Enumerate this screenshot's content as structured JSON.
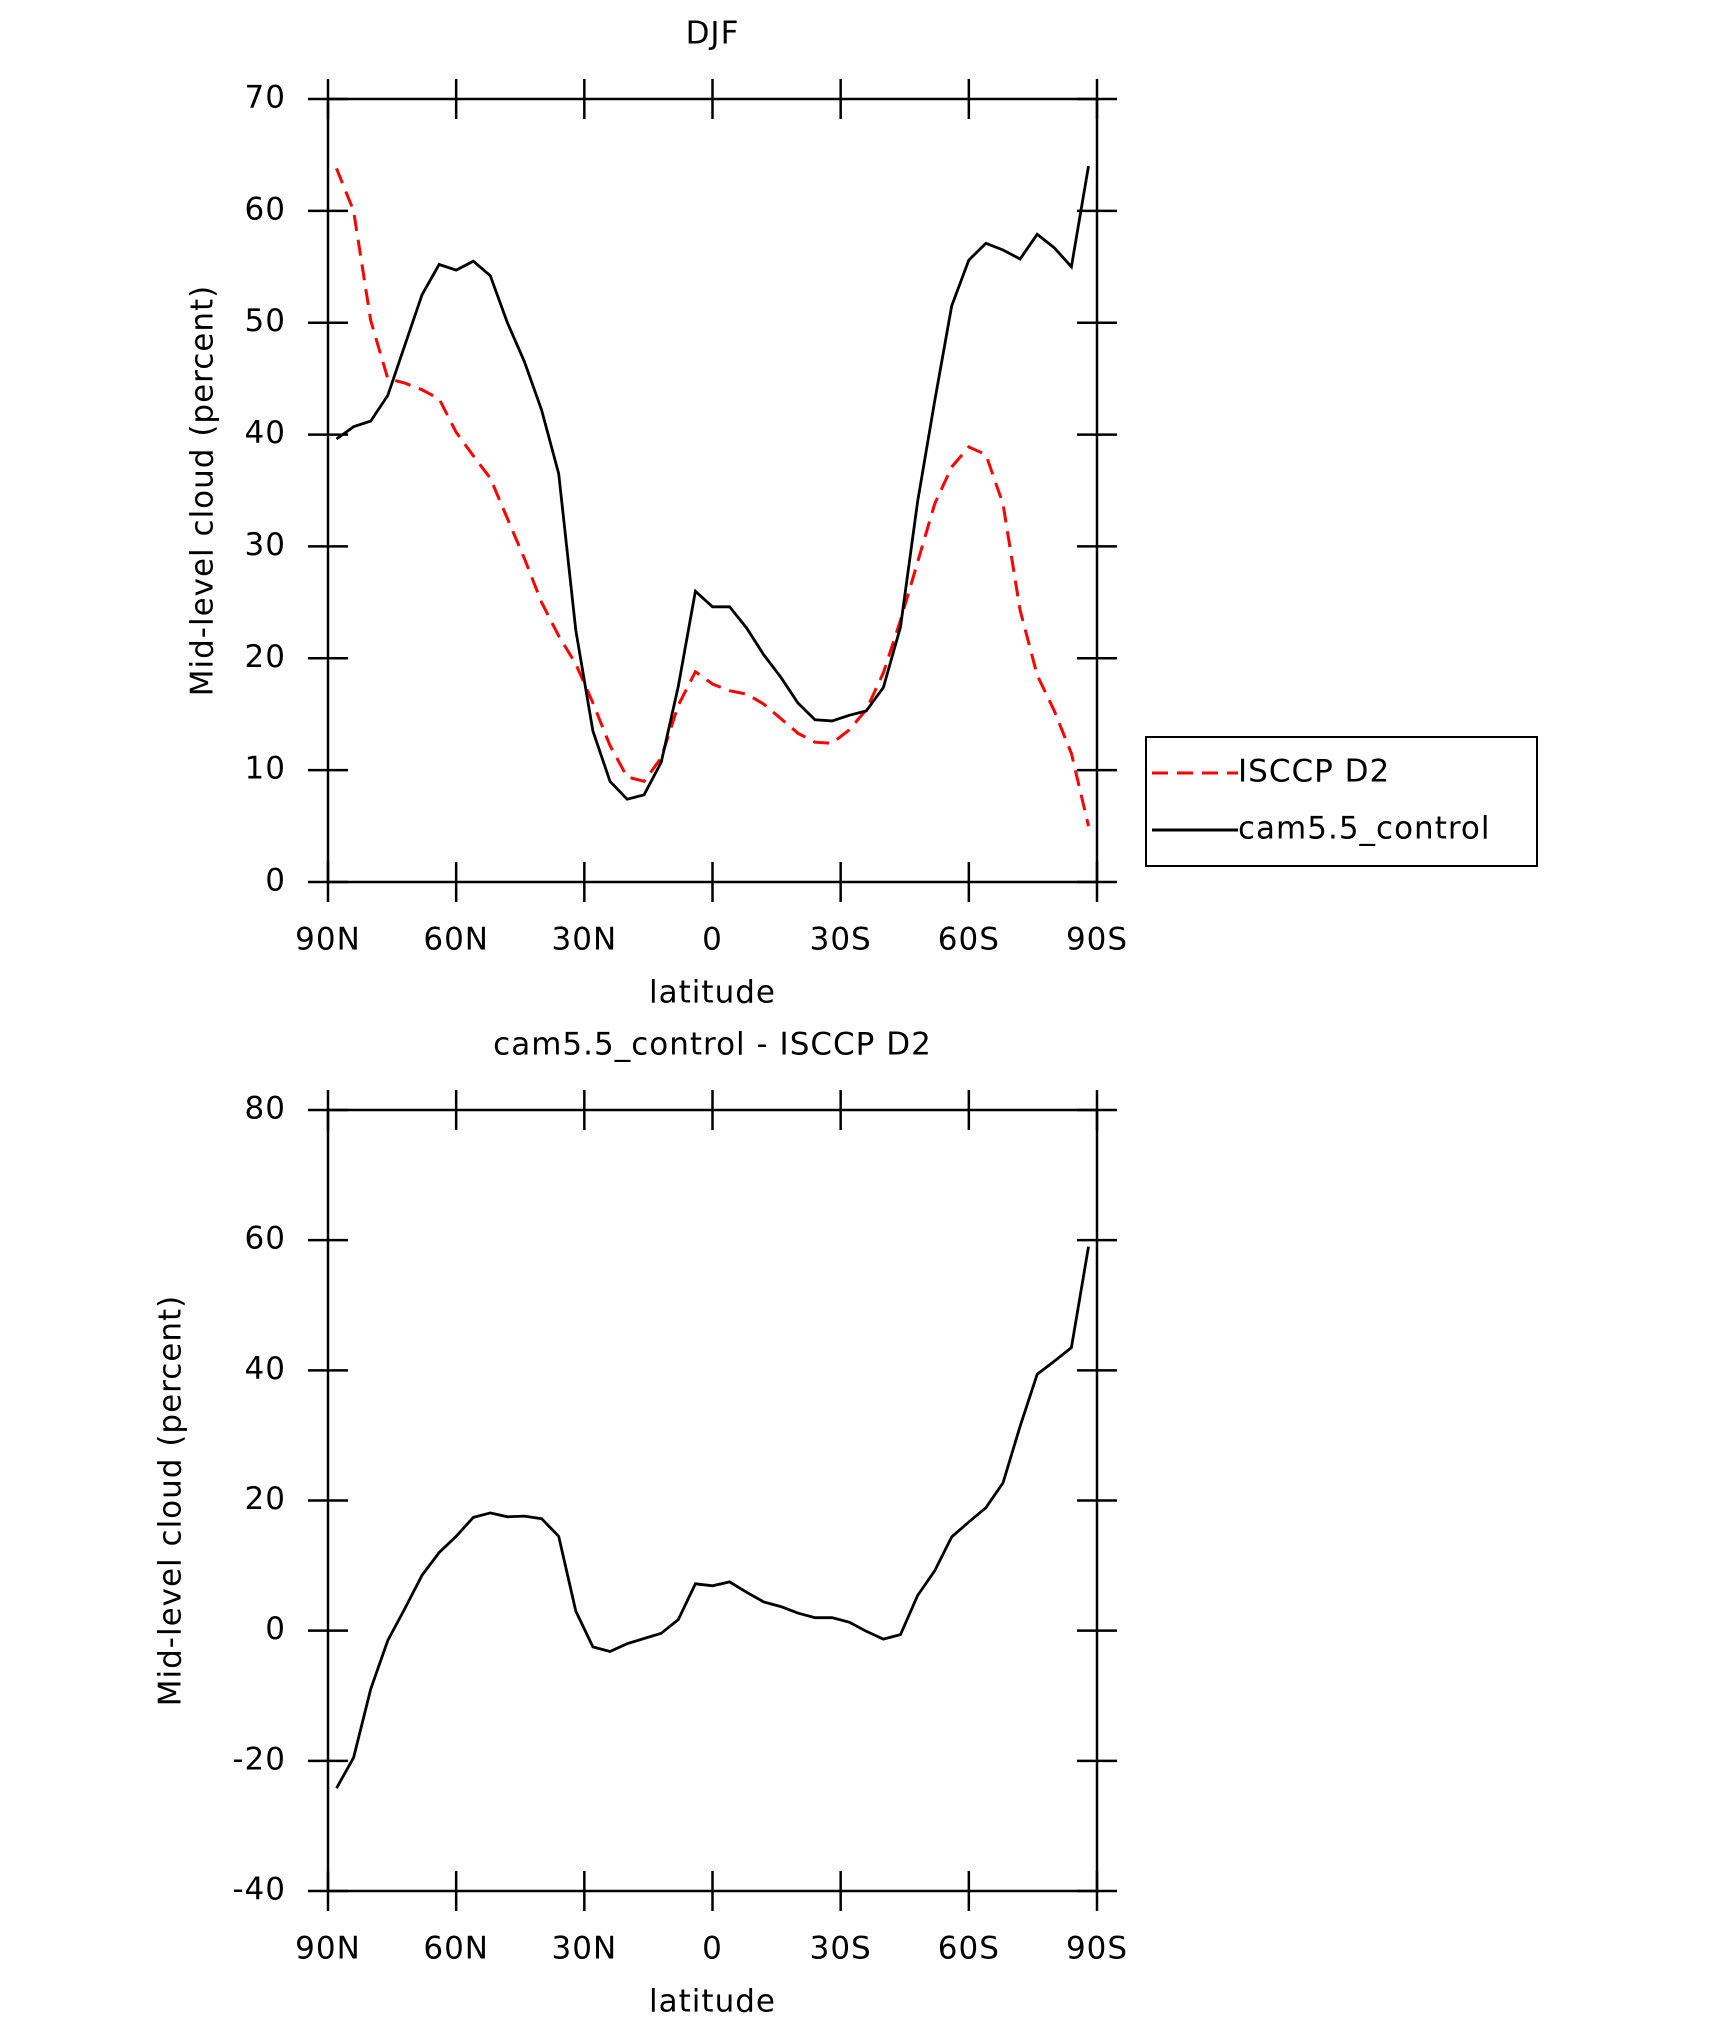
{
  "chart_data": [
    {
      "type": "line",
      "title": "DJF",
      "xlabel": "latitude",
      "ylabel": "Mid-level cloud (percent)",
      "x": [
        88,
        84,
        80,
        76,
        72,
        68,
        64,
        60,
        56,
        52,
        48,
        44,
        40,
        36,
        32,
        28,
        24,
        20,
        16,
        12,
        8,
        4,
        0,
        -4,
        -8,
        -12,
        -16,
        -20,
        -24,
        -28,
        -32,
        -36,
        -40,
        -44,
        -48,
        -52,
        -56,
        -60,
        -64,
        -68,
        -72,
        -76,
        -80,
        -84,
        -88
      ],
      "xlim": [
        90,
        -90
      ],
      "xticks": [
        {
          "value": 90,
          "label": "90N"
        },
        {
          "value": 60,
          "label": "60N"
        },
        {
          "value": 30,
          "label": "30N"
        },
        0,
        {
          "value": -30,
          "label": "30S"
        },
        {
          "value": -60,
          "label": "60S"
        },
        {
          "value": -90,
          "label": "90S"
        }
      ],
      "ylim": [
        0,
        70
      ],
      "yticks": [
        0,
        10,
        20,
        30,
        40,
        50,
        60,
        70
      ],
      "legend": "outside right",
      "series": [
        {
          "name": "ISCCP D2",
          "color": "#ff0000",
          "dash": "dashed",
          "values": [
            63.8,
            60,
            50.2,
            45,
            44.6,
            44,
            43.2,
            40.2,
            38.1,
            36.1,
            32.5,
            28.9,
            25,
            22,
            19.5,
            16,
            12.2,
            9.4,
            9,
            11.1,
            15.8,
            18.8,
            17.7,
            17.1,
            16.8,
            15.9,
            14.6,
            13.3,
            12.5,
            12.4,
            13.6,
            15.4,
            18.7,
            23.4,
            28.6,
            33.8,
            37.1,
            38.9,
            38.2,
            33.8,
            24.3,
            18.5,
            15.3,
            11.5,
            5
          ]
        },
        {
          "name": "cam5.5_control",
          "color": "#000000",
          "dash": "solid",
          "values": [
            39.6,
            40.7,
            41.2,
            43.5,
            48,
            52.5,
            55.2,
            54.7,
            55.5,
            54.2,
            50,
            46.5,
            42.2,
            36.5,
            22.5,
            13.5,
            9,
            7.4,
            7.8,
            10.7,
            17.5,
            26,
            24.6,
            24.6,
            22.7,
            20.3,
            18.3,
            16,
            14.5,
            14.4,
            14.9,
            15.3,
            17.4,
            22.8,
            34,
            43,
            51.5,
            55.6,
            57.1,
            56.5,
            55.7,
            57.9,
            56.7,
            55,
            64
          ]
        }
      ]
    },
    {
      "type": "line",
      "title": "cam5.5_control - ISCCP D2",
      "xlabel": "latitude",
      "ylabel": "Mid-level cloud (percent)",
      "x": [
        88,
        84,
        80,
        76,
        72,
        68,
        64,
        60,
        56,
        52,
        48,
        44,
        40,
        36,
        32,
        28,
        24,
        20,
        16,
        12,
        8,
        4,
        0,
        -4,
        -8,
        -12,
        -16,
        -20,
        -24,
        -28,
        -32,
        -36,
        -40,
        -44,
        -48,
        -52,
        -56,
        -60,
        -64,
        -68,
        -72,
        -76,
        -80,
        -84,
        -88
      ],
      "xlim": [
        90,
        -90
      ],
      "xticks": [
        {
          "value": 90,
          "label": "90N"
        },
        {
          "value": 60,
          "label": "60N"
        },
        {
          "value": 30,
          "label": "30N"
        },
        0,
        {
          "value": -30,
          "label": "30S"
        },
        {
          "value": -60,
          "label": "60S"
        },
        {
          "value": -90,
          "label": "90S"
        }
      ],
      "ylim": [
        -40,
        80
      ],
      "yticks": [
        -40,
        -20,
        0,
        20,
        40,
        60,
        80
      ],
      "series": [
        {
          "color": "#000000",
          "dash": "solid",
          "values": [
            -24.2,
            -19.5,
            -9,
            -1.5,
            3.4,
            8.5,
            12,
            14.5,
            17.4,
            18.1,
            17.5,
            17.6,
            17.2,
            14.5,
            3,
            -2.5,
            -3.2,
            -2,
            -1.2,
            -0.4,
            1.7,
            7.2,
            6.9,
            7.5,
            5.9,
            4.4,
            3.7,
            2.7,
            2,
            2,
            1.3,
            -0.1,
            -1.3,
            -0.6,
            5.4,
            9.2,
            14.4,
            16.7,
            18.9,
            22.7,
            31.4,
            39.4,
            41.4,
            43.5,
            59
          ]
        }
      ]
    }
  ]
}
